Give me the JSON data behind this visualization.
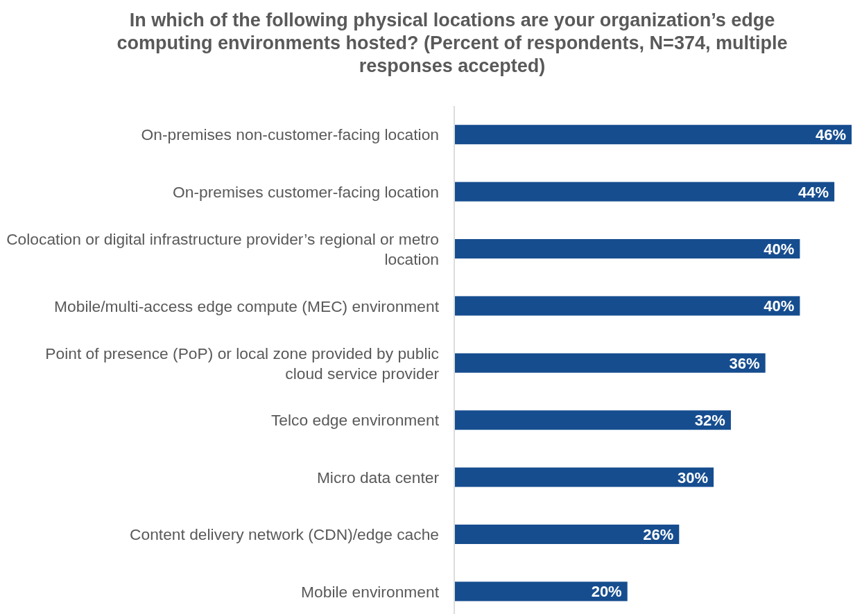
{
  "chart_data": {
    "type": "bar",
    "orientation": "horizontal",
    "title": "In which of the following physical locations are your organization’s edge computing environments hosted? (Percent of respondents, N=374, multiple responses accepted)",
    "categories": [
      "On-premises non-customer-facing location",
      "On-premises customer-facing location",
      "Colocation or digital infrastructure provider’s regional or metro location",
      "Mobile/multi-access edge compute (MEC) environment",
      "Point of presence (PoP) or local zone provided by public cloud service provider",
      "Telco edge environment",
      "Micro data center",
      "Content delivery network (CDN)/edge cache",
      "Mobile environment"
    ],
    "values": [
      46,
      44,
      40,
      40,
      36,
      32,
      30,
      26,
      20
    ],
    "value_labels": [
      "46%",
      "44%",
      "40%",
      "40%",
      "36%",
      "32%",
      "30%",
      "26%",
      "20%"
    ],
    "color": "#164d8f"
  }
}
